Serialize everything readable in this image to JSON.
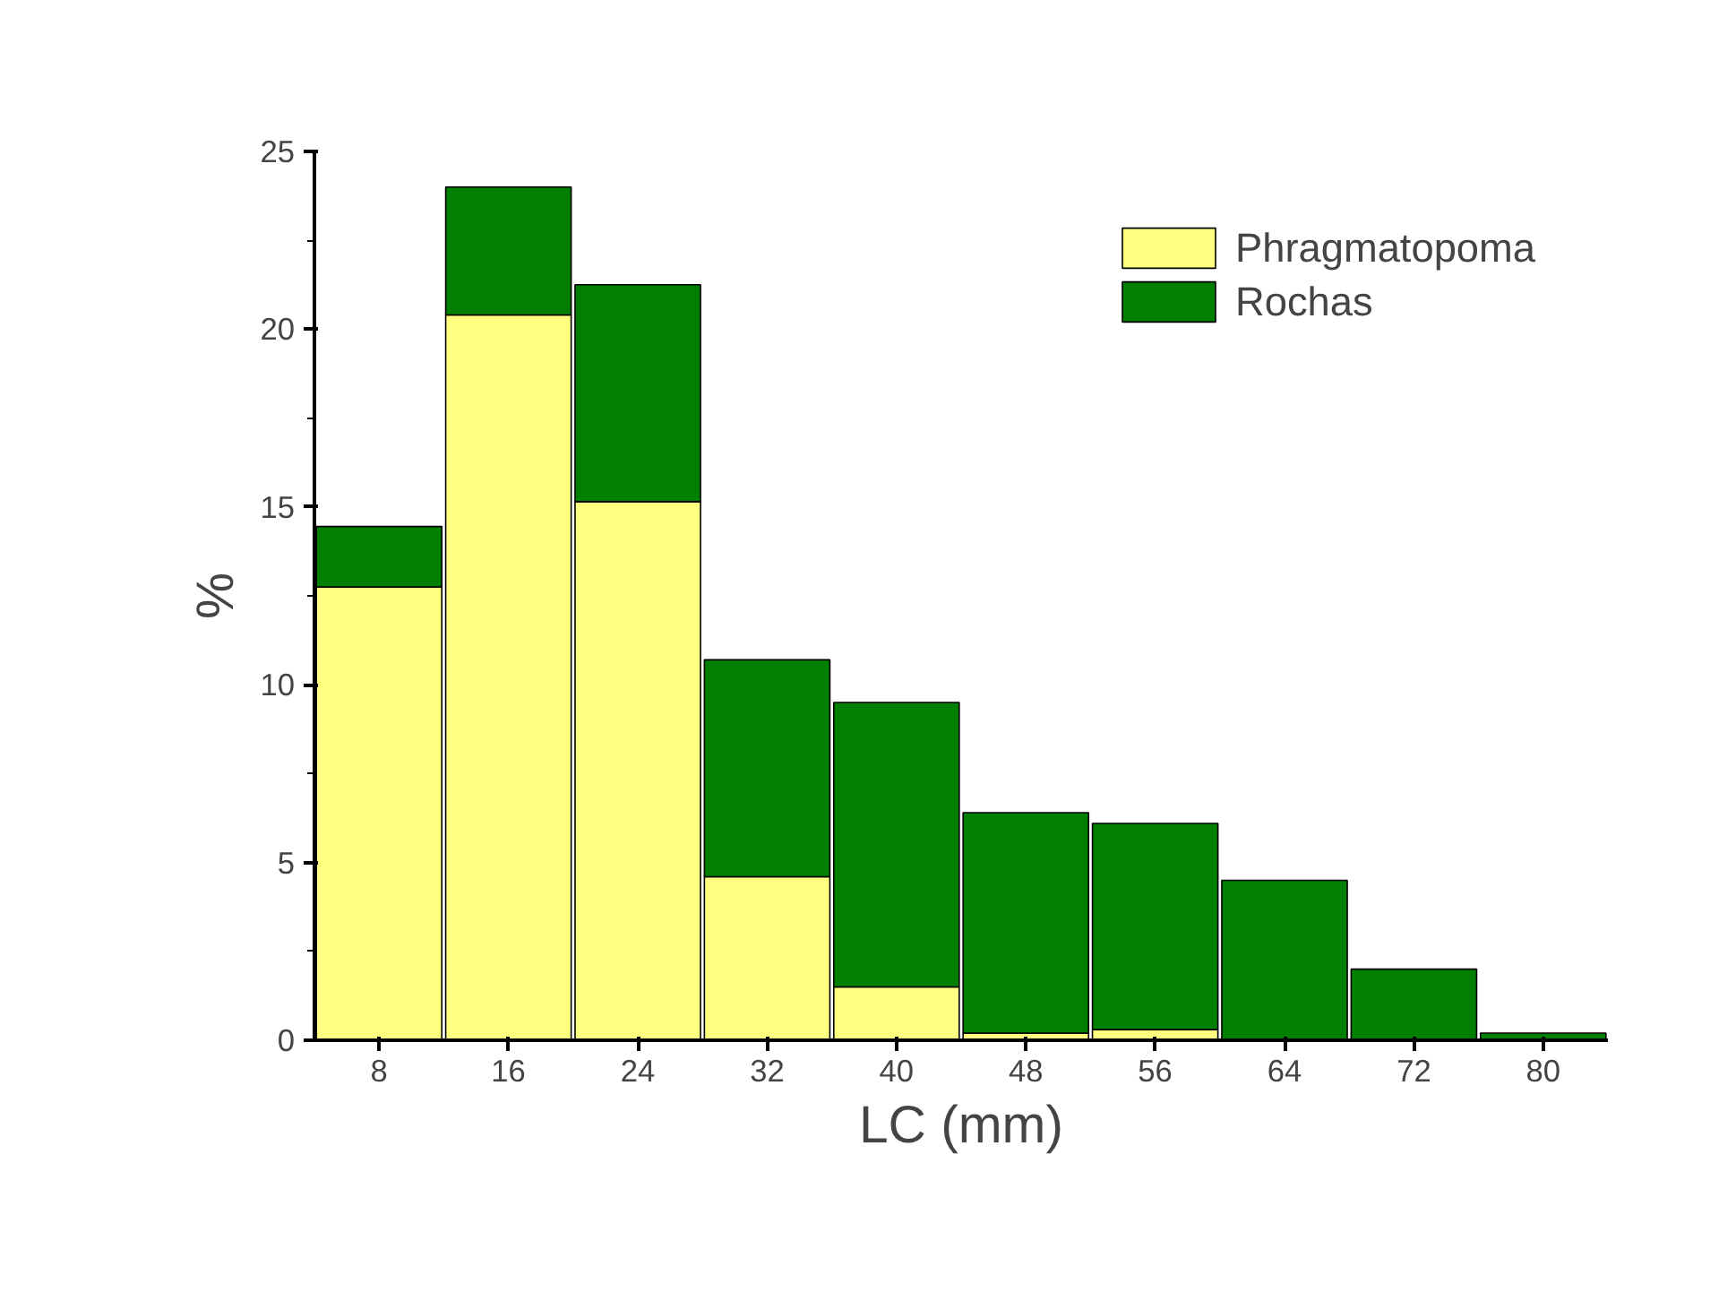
{
  "chart_data": {
    "type": "bar",
    "stacked": true,
    "xlabel": "LC (mm)",
    "ylabel": "%",
    "categories": [
      "8",
      "16",
      "24",
      "32",
      "40",
      "48",
      "56",
      "64",
      "72",
      "80"
    ],
    "series": [
      {
        "name": "Phragmatopoma",
        "color": "#ffff80",
        "values": [
          12.75,
          20.4,
          15.15,
          4.6,
          1.5,
          0.2,
          0.3,
          0,
          0,
          0
        ]
      },
      {
        "name": "Rochas",
        "color": "#007f00",
        "values": [
          1.7,
          3.6,
          6.1,
          6.1,
          8.0,
          6.2,
          5.8,
          4.5,
          2.0,
          0.2
        ]
      }
    ],
    "ylim": [
      0,
      25
    ],
    "yticks": [
      0,
      5,
      10,
      15,
      20,
      25
    ],
    "grid": false,
    "legend": "top right"
  }
}
